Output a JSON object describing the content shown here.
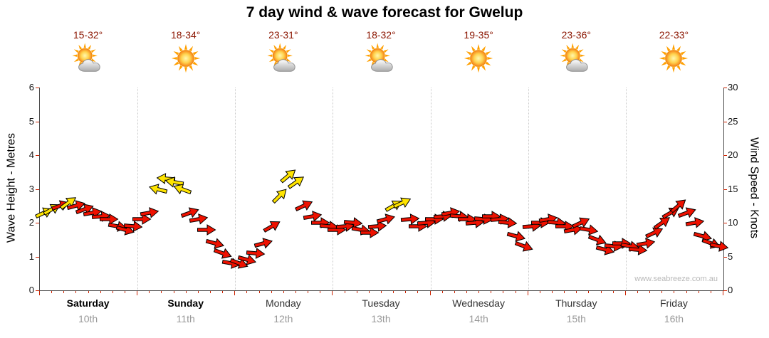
{
  "title": "7 day wind & wave forecast for Gwelup",
  "watermark": "www.seabreeze.com.au",
  "colors": {
    "arrow_strong": "#ee1100",
    "arrow_light": "#ffe400",
    "arrow_outline": "#000000",
    "temp": "#8b1500",
    "tick": "#cc2200",
    "axis": "#4a4a4a",
    "separator": "#c9c9c9",
    "weekend_name": "#000000",
    "weekday_name": "#333333",
    "date": "#999999",
    "watermark": "#b9b9b9",
    "sun": "#ffa000",
    "cloud": "#ababab"
  },
  "days": [
    {
      "name": "Saturday",
      "date": "10th",
      "temp": "15-32°",
      "icon": "sun-cloud"
    },
    {
      "name": "Sunday",
      "date": "11th",
      "temp": "18-34°",
      "icon": "sun"
    },
    {
      "name": "Monday",
      "date": "12th",
      "temp": "23-31°",
      "icon": "sun-cloud"
    },
    {
      "name": "Tuesday",
      "date": "13th",
      "temp": "18-32°",
      "icon": "sun-cloud"
    },
    {
      "name": "Wednesday",
      "date": "14th",
      "temp": "19-35°",
      "icon": "sun"
    },
    {
      "name": "Thursday",
      "date": "15th",
      "temp": "23-36°",
      "icon": "sun-cloud"
    },
    {
      "name": "Friday",
      "date": "16th",
      "temp": "22-33°",
      "icon": "sun"
    }
  ],
  "axes": {
    "left_label": "Wave Height - Metres",
    "right_label": "Wind Speed - Knots",
    "left_ticks": [
      0,
      1,
      2,
      3,
      4,
      5,
      6
    ],
    "right_ticks": [
      0,
      5,
      10,
      15,
      20,
      25,
      30
    ],
    "left_max": 6,
    "right_max": 30
  },
  "chart_data": {
    "type": "scatter",
    "subtype": "wind-direction-arrows",
    "title": "7 day wind & wave forecast for Gwelup",
    "x_categories": [
      "Saturday 10th",
      "Sunday 11th",
      "Monday 12th",
      "Tuesday 13th",
      "Wednesday 14th",
      "Thursday 15th",
      "Friday 16th"
    ],
    "y_left": {
      "label": "Wave Height - Metres",
      "range": [
        0,
        6
      ]
    },
    "y_right": {
      "label": "Wind Speed - Knots",
      "range": [
        0,
        30
      ]
    },
    "legend": "arrow color: r = red (stronger/onshore wind), y = yellow (lighter/offshore wind); arrow points in wind direction",
    "points_format": [
      "day_index",
      "hour_of_day",
      "wind_speed_knots",
      "arrow_rotation_deg",
      "category"
    ],
    "points": [
      [
        0,
        1,
        11.5,
        -25,
        "y"
      ],
      [
        0,
        3,
        12,
        -30,
        "y"
      ],
      [
        0,
        5,
        12.5,
        -20,
        "r"
      ],
      [
        0,
        7,
        13,
        -35,
        "y"
      ],
      [
        0,
        9,
        12.5,
        -15,
        "r"
      ],
      [
        0,
        11,
        12,
        -20,
        "r"
      ],
      [
        0,
        13,
        11.5,
        -10,
        "r"
      ],
      [
        0,
        15,
        11,
        -5,
        "r"
      ],
      [
        0,
        17,
        10.5,
        0,
        "r"
      ],
      [
        0,
        19,
        9.5,
        10,
        "r"
      ],
      [
        0,
        21,
        9,
        15,
        "r"
      ],
      [
        0,
        23,
        9.5,
        5,
        "r"
      ],
      [
        1,
        1,
        10.5,
        0,
        "r"
      ],
      [
        1,
        3,
        11.5,
        -10,
        "r"
      ],
      [
        1,
        5,
        15,
        195,
        "y"
      ],
      [
        1,
        7,
        16.5,
        185,
        "y"
      ],
      [
        1,
        9,
        16,
        190,
        "y"
      ],
      [
        1,
        11,
        15,
        200,
        "y"
      ],
      [
        1,
        13,
        11.5,
        -20,
        "r"
      ],
      [
        1,
        15,
        10.5,
        -10,
        "r"
      ],
      [
        1,
        17,
        9,
        0,
        "r"
      ],
      [
        1,
        19,
        7,
        15,
        "r"
      ],
      [
        1,
        21,
        5.5,
        20,
        "r"
      ],
      [
        1,
        23,
        4,
        10,
        "r"
      ],
      [
        2,
        1,
        4,
        20,
        "r"
      ],
      [
        2,
        3,
        4.5,
        15,
        "r"
      ],
      [
        2,
        5,
        5.5,
        5,
        "r"
      ],
      [
        2,
        7,
        7,
        -15,
        "r"
      ],
      [
        2,
        9,
        9.5,
        -30,
        "r"
      ],
      [
        2,
        11,
        14,
        -45,
        "y"
      ],
      [
        2,
        13,
        17,
        -40,
        "y"
      ],
      [
        2,
        15,
        16,
        -35,
        "y"
      ],
      [
        2,
        17,
        12.5,
        -25,
        "r"
      ],
      [
        2,
        19,
        11,
        -10,
        "r"
      ],
      [
        2,
        21,
        10,
        0,
        "r"
      ],
      [
        2,
        23,
        9.5,
        5,
        "r"
      ],
      [
        3,
        1,
        9,
        0,
        "r"
      ],
      [
        3,
        3,
        9.5,
        -5,
        "r"
      ],
      [
        3,
        5,
        10,
        5,
        "r"
      ],
      [
        3,
        7,
        9,
        10,
        "r"
      ],
      [
        3,
        9,
        8.5,
        0,
        "r"
      ],
      [
        3,
        11,
        9.5,
        -5,
        "r"
      ],
      [
        3,
        13,
        10.5,
        -15,
        "r"
      ],
      [
        3,
        15,
        12.5,
        -30,
        "y"
      ],
      [
        3,
        17,
        13,
        -25,
        "y"
      ],
      [
        3,
        19,
        10.5,
        -5,
        "r"
      ],
      [
        3,
        21,
        9.5,
        0,
        "r"
      ],
      [
        3,
        23,
        10,
        -5,
        "r"
      ],
      [
        4,
        1,
        10.5,
        0,
        "r"
      ],
      [
        4,
        3,
        11,
        -5,
        "r"
      ],
      [
        4,
        5,
        11.5,
        -10,
        "r"
      ],
      [
        4,
        7,
        11,
        5,
        "r"
      ],
      [
        4,
        9,
        10.5,
        0,
        "r"
      ],
      [
        4,
        11,
        10,
        -5,
        "r"
      ],
      [
        4,
        13,
        10.5,
        5,
        "r"
      ],
      [
        4,
        15,
        11,
        0,
        "r"
      ],
      [
        4,
        17,
        10.5,
        -5,
        "r"
      ],
      [
        4,
        19,
        10,
        5,
        "r"
      ],
      [
        4,
        21,
        8,
        15,
        "r"
      ],
      [
        4,
        23,
        6.5,
        20,
        "r"
      ],
      [
        5,
        1,
        9.5,
        -5,
        "r"
      ],
      [
        5,
        3,
        10,
        0,
        "r"
      ],
      [
        5,
        5,
        10.5,
        -10,
        "r"
      ],
      [
        5,
        7,
        10,
        5,
        "r"
      ],
      [
        5,
        9,
        9.5,
        0,
        "r"
      ],
      [
        5,
        11,
        9,
        -10,
        "r"
      ],
      [
        5,
        13,
        10,
        -25,
        "r"
      ],
      [
        5,
        15,
        9,
        10,
        "r"
      ],
      [
        5,
        17,
        7.5,
        20,
        "r"
      ],
      [
        5,
        19,
        6,
        15,
        "r"
      ],
      [
        5,
        21,
        6.5,
        5,
        "r"
      ],
      [
        5,
        23,
        7,
        0,
        "r"
      ],
      [
        6,
        1,
        6.5,
        10,
        "r"
      ],
      [
        6,
        3,
        6,
        5,
        "r"
      ],
      [
        6,
        5,
        7,
        -10,
        "r"
      ],
      [
        6,
        7,
        8.5,
        -25,
        "r"
      ],
      [
        6,
        9,
        10,
        -35,
        "r"
      ],
      [
        6,
        11,
        11.5,
        -30,
        "r"
      ],
      [
        6,
        13,
        12.5,
        -40,
        "r"
      ],
      [
        6,
        15,
        11.5,
        -20,
        "r"
      ],
      [
        6,
        17,
        10,
        -10,
        "r"
      ],
      [
        6,
        19,
        8,
        15,
        "r"
      ],
      [
        6,
        21,
        7,
        20,
        "r"
      ],
      [
        6,
        23,
        6.5,
        10,
        "r"
      ]
    ]
  }
}
